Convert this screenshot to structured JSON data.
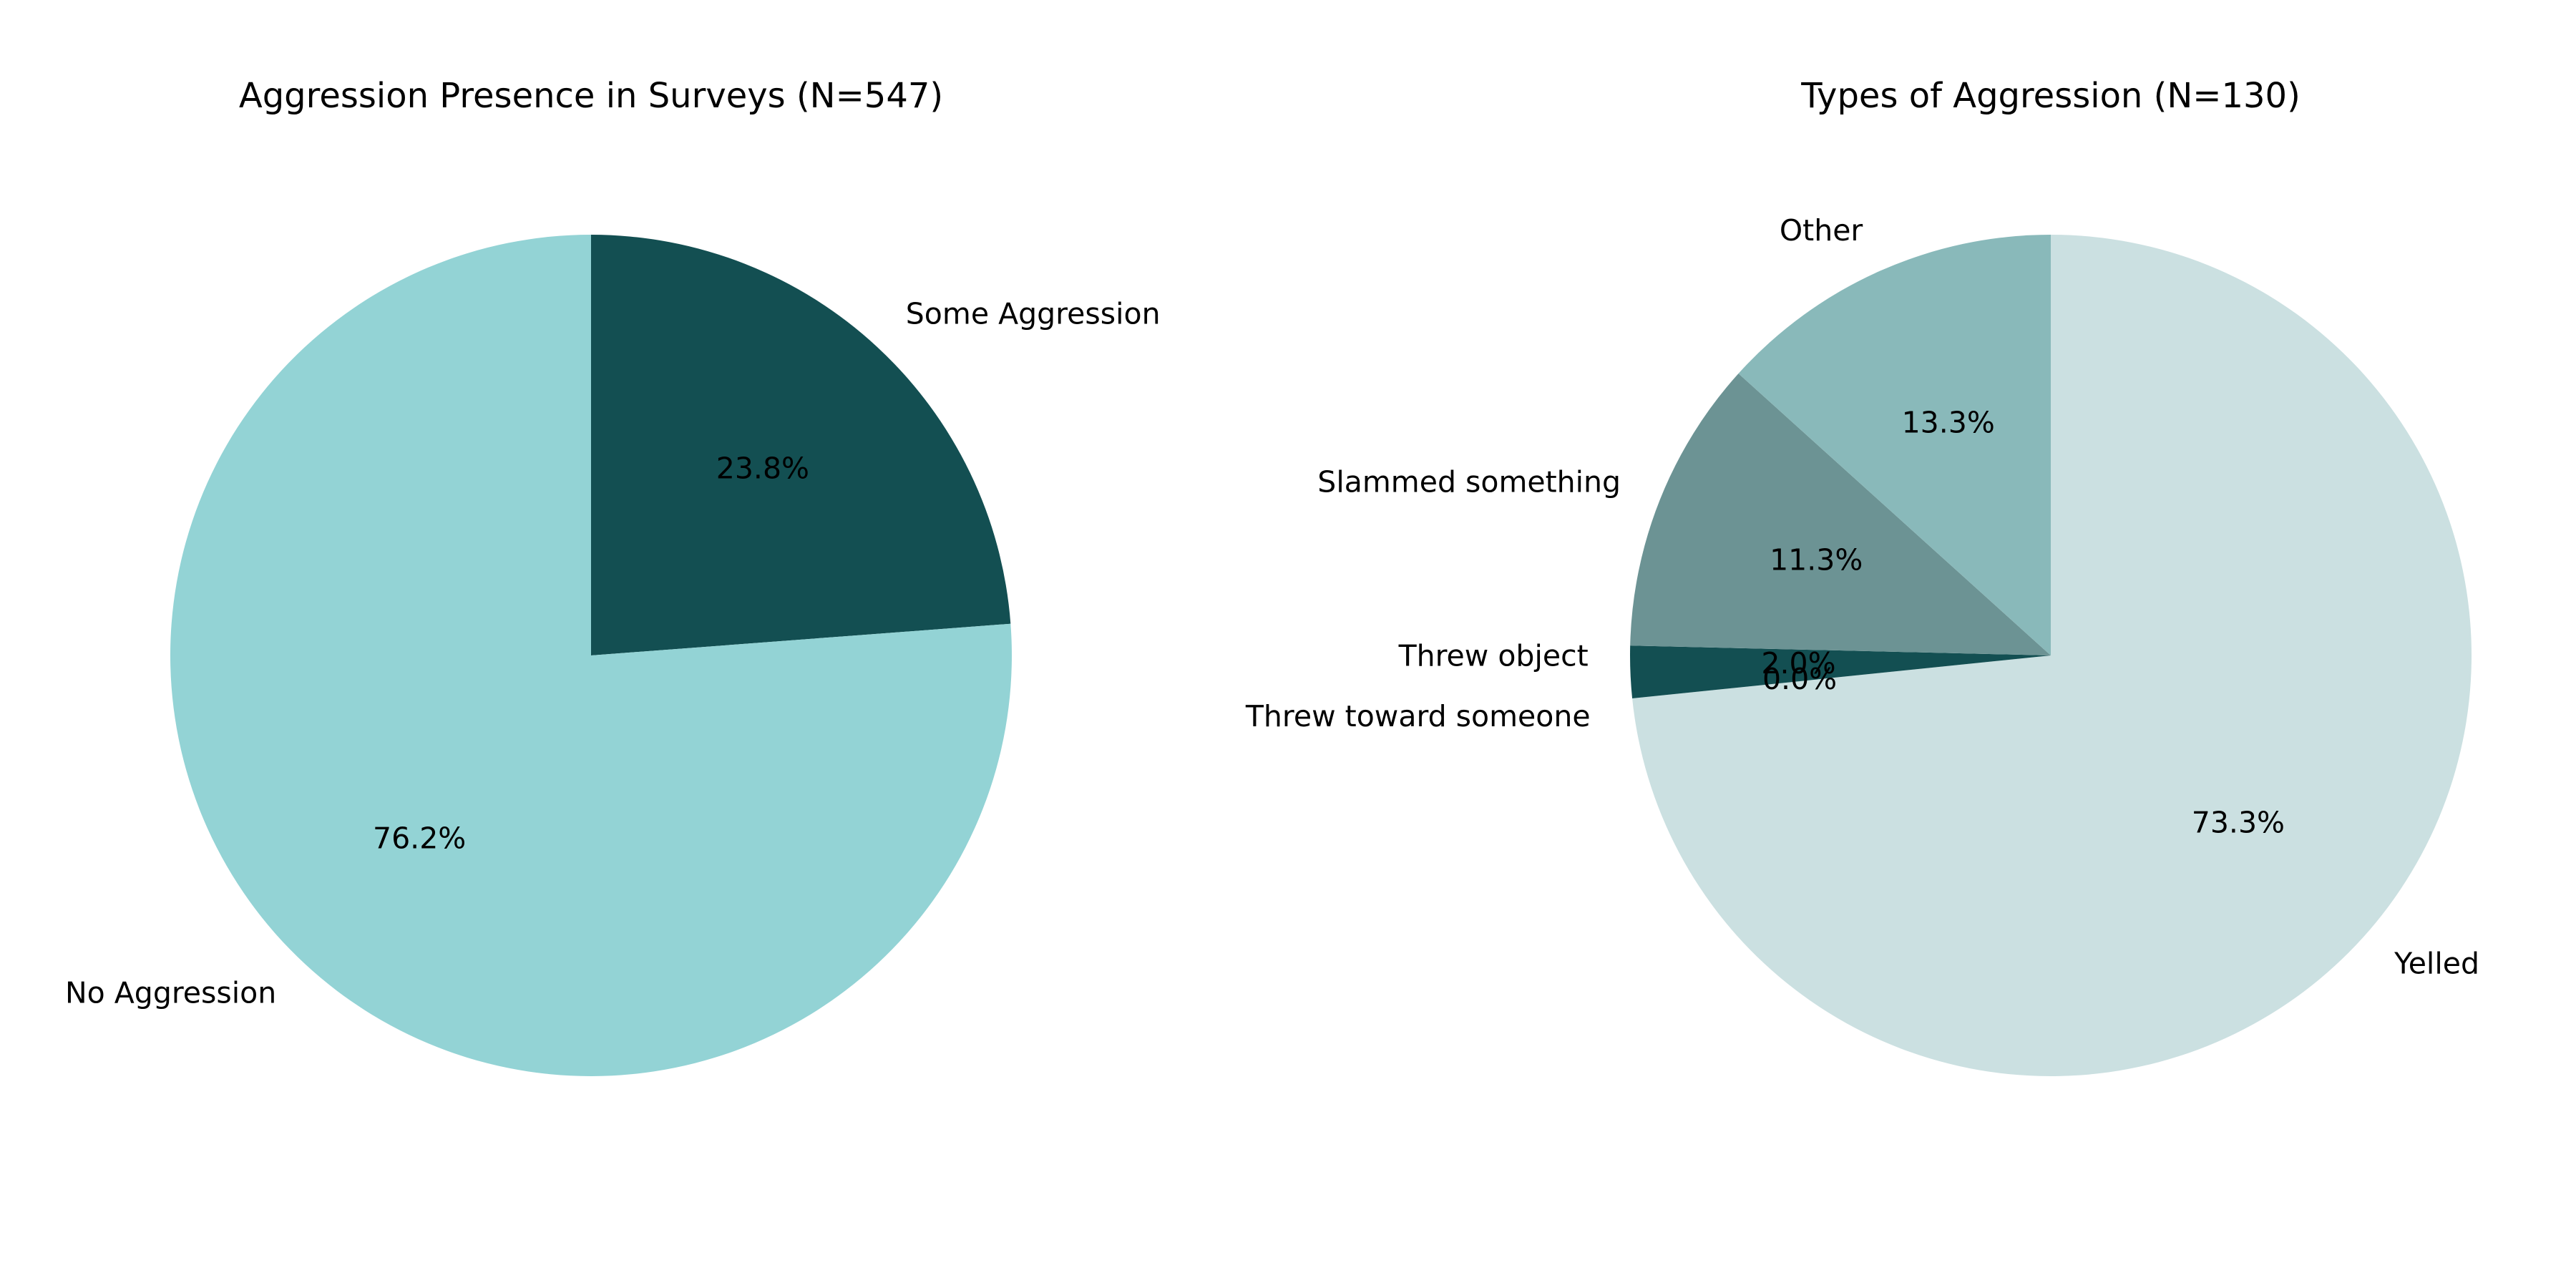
{
  "chart_data": [
    {
      "type": "pie",
      "title": "Aggression Presence in Surveys (N=547)",
      "categories": [
        "Some Aggression",
        "No Aggression"
      ],
      "values": [
        23.8,
        76.2
      ],
      "value_labels": [
        "23.8%",
        "76.2%"
      ],
      "colors": [
        "#134f52",
        "#93d3d5"
      ],
      "start_angle_deg": 90,
      "direction": "clockwise"
    },
    {
      "type": "pie",
      "title": "Types of Aggression (N=130)",
      "categories": [
        "Yelled",
        "Threw toward someone",
        "Threw object",
        "Slammed something",
        "Other"
      ],
      "values": [
        73.3,
        0.0,
        2.0,
        11.3,
        13.3
      ],
      "value_labels": [
        "73.3%",
        "0.0%",
        "2.0%",
        "11.3%",
        "13.3%"
      ],
      "colors": [
        "#cbe0e1",
        "#134f52",
        "#134f52",
        "#6c9394",
        "#89b9ba"
      ],
      "start_angle_deg": 90,
      "direction": "clockwise"
    }
  ]
}
